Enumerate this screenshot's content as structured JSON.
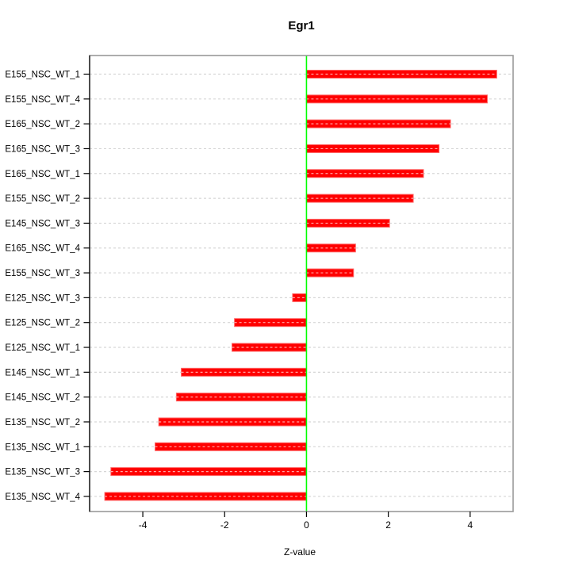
{
  "figure": {
    "background": "#ffffff"
  },
  "chart_data": {
    "type": "bar",
    "orientation": "horizontal",
    "title": "Egr1",
    "xlabel": "Z-value",
    "ylabel": "",
    "categories": [
      "E155_NSC_WT_1",
      "E155_NSC_WT_4",
      "E165_NSC_WT_2",
      "E165_NSC_WT_3",
      "E165_NSC_WT_1",
      "E155_NSC_WT_2",
      "E145_NSC_WT_3",
      "E165_NSC_WT_4",
      "E155_NSC_WT_3",
      "E125_NSC_WT_3",
      "E125_NSC_WT_2",
      "E125_NSC_WT_1",
      "E145_NSC_WT_1",
      "E145_NSC_WT_2",
      "E135_NSC_WT_2",
      "E135_NSC_WT_1",
      "E135_NSC_WT_3",
      "E135_NSC_WT_4"
    ],
    "values": [
      4.65,
      4.42,
      3.52,
      3.24,
      2.86,
      2.61,
      2.03,
      1.2,
      1.15,
      -0.34,
      -1.76,
      -1.82,
      -3.06,
      -3.18,
      -3.61,
      -3.7,
      -4.78,
      -4.93
    ],
    "xlim": [
      -5.3,
      5.05
    ],
    "xticks": [
      -4,
      -2,
      0,
      2,
      4
    ],
    "xtick_labels": [
      "-4",
      "-2",
      "0",
      "2",
      "4"
    ],
    "grid": "dashed horizontal line per category",
    "legend": "none",
    "bar_color": "#ff0000",
    "bar_edge_color": "#ff6666",
    "zero_line_color": "#00ff00",
    "grid_color": "#d6d6d6",
    "frame_color": "#999999",
    "tick_color": "#000000",
    "text_color": "#000000"
  }
}
